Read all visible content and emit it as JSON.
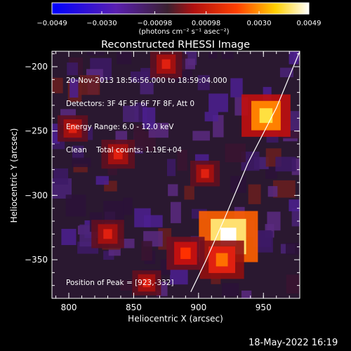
{
  "chart_data": {
    "type": "heatmap",
    "title": "Reconstructed RHESSI Image",
    "xlabel": "Heliocentric X (arcsec)",
    "ylabel": "Heliocentric Y (arcsec)",
    "xlim": [
      787,
      978
    ],
    "ylim": [
      -380,
      -188
    ],
    "x_ticks": [
      "800",
      "850",
      "900",
      "950"
    ],
    "y_ticks": [
      "-200",
      "-250",
      "-300",
      "-350"
    ],
    "colorbar": {
      "label": "(photons cm⁻² s⁻¹ asec⁻²)",
      "range": [
        -0.0049,
        0.0049
      ],
      "ticks": [
        "-0.0049",
        "-0.0030",
        "-0.00098",
        "0.00098",
        "0.0030",
        "0.0049"
      ],
      "scale": "blue-purple-red-yellow-white"
    },
    "sources": [
      {
        "x": 923,
        "y": -332,
        "intensity": 0.0049
      },
      {
        "x": 952,
        "y": -238,
        "intensity": 0.0036
      },
      {
        "x": 918,
        "y": -350,
        "intensity": 0.003
      },
      {
        "x": 890,
        "y": -345,
        "intensity": 0.0022
      },
      {
        "x": 838,
        "y": -268,
        "intensity": 0.0016
      },
      {
        "x": 875,
        "y": -198,
        "intensity": 0.0014
      },
      {
        "x": 830,
        "y": -330,
        "intensity": 0.0015
      },
      {
        "x": 803,
        "y": -248,
        "intensity": 0.0012
      },
      {
        "x": 905,
        "y": -283,
        "intensity": 0.0011
      },
      {
        "x": 860,
        "y": -368,
        "intensity": 0.001
      }
    ],
    "limb": [
      [
        978,
        -188
      ],
      [
        960,
        -232
      ],
      [
        938,
        -275
      ],
      [
        920,
        -318
      ],
      [
        905,
        -352
      ],
      [
        894,
        -375
      ]
    ],
    "grid": false
  },
  "info": {
    "time": "20-Nov-2013 18:56:56.000 to 18:59:04.000",
    "detectors": "Detectors: 3F 4F 5F 6F 7F 8F, Att 0",
    "energy": "Energy Range: 6.0 - 12.0 keV",
    "clean": "Clean    Total counts: 1.19E+04",
    "peak": "Position of Peak = [923,-332]"
  },
  "timestamp": "18-May-2022 16:19"
}
